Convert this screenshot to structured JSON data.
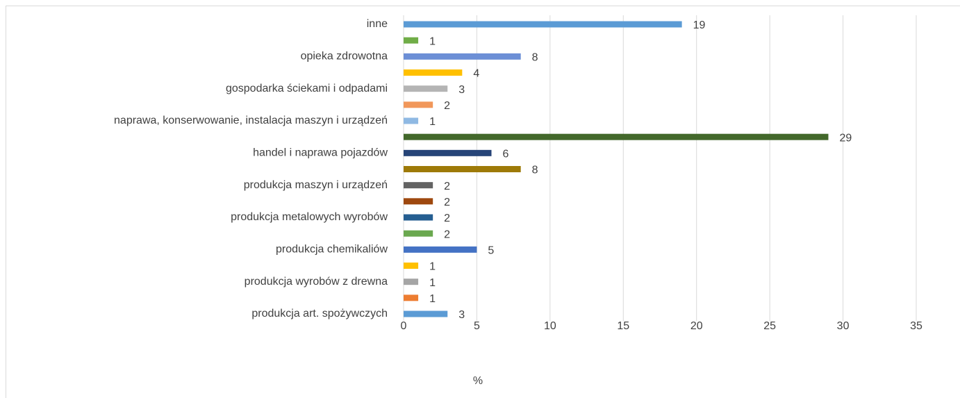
{
  "chart_data": {
    "type": "barh",
    "x_label": "%",
    "categories": [
      "inne",
      null,
      "opieka zdrowotna",
      null,
      "gospodarka ściekami i odpadami",
      null,
      "naprawa, konserwowanie, instalacja maszyn i urządzeń",
      null,
      "handel i naprawa pojazdów",
      null,
      "produkcja maszyn i urządzeń",
      null,
      "produkcja metalowych wyrobów",
      null,
      "produkcja chemikaliów",
      null,
      "produkcja wyrobów z drewna",
      null,
      "produkcja art. spożywczych"
    ],
    "values": [
      19,
      1,
      8,
      4,
      3,
      2,
      1,
      29,
      6,
      8,
      2,
      2,
      2,
      2,
      5,
      1,
      1,
      1,
      3
    ],
    "colors": [
      "#5b9bd5",
      "#70ad47",
      "#6c8fd6",
      "#ffc000",
      "#b4b4b4",
      "#f1975a",
      "#8fb9e3",
      "#43682b",
      "#264478",
      "#9e7a08",
      "#636363",
      "#9e480e",
      "#255e91",
      "#6aa84f",
      "#4472c4",
      "#ffc000",
      "#a5a5a5",
      "#ed7d31",
      "#5b9bd5"
    ],
    "xlim": [
      0,
      35
    ],
    "xticks": [
      0,
      5,
      10,
      15,
      20,
      25,
      30,
      35
    ],
    "grid": true
  }
}
